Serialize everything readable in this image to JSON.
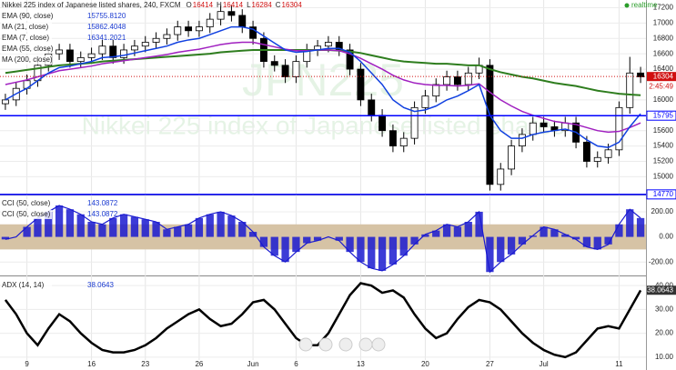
{
  "chart_data": [
    {
      "type": "candlestick",
      "title": "Nikkei 225 index of Japanese listed shares, 240, FXCM",
      "ohlc_header": [
        {
          "label": "O",
          "value": 16414
        },
        {
          "label": "H",
          "value": 16414
        },
        {
          "label": "L",
          "value": 16284
        },
        {
          "label": "C",
          "value": 16304
        }
      ],
      "realtime": "realtime",
      "watermark": [
        "JPN225",
        "Nikkei 225 index of Japanese listed shares"
      ],
      "indicators": [
        {
          "name": "EMA (90, close)",
          "value": 15755.812,
          "value_label": "15755.8120"
        },
        {
          "name": "MA (21, close)",
          "value": 15862.4048,
          "value_label": "15862.4048"
        },
        {
          "name": "EMA (7, close)",
          "value": 16341.2021,
          "value_label": "16341.2021"
        },
        {
          "name": "EMA (55, close)"
        },
        {
          "name": "MA (200, close)"
        }
      ],
      "up_color": "#ffffff",
      "down_color": "#000000",
      "open": [
        15950,
        16000,
        16150,
        16250,
        16450,
        16600,
        16650,
        16500,
        16550,
        16600,
        16700,
        16550,
        16650,
        16700,
        16750,
        16800,
        16850,
        16950,
        16900,
        16950,
        17050,
        17150,
        17100,
        16950,
        16800,
        16500,
        16450,
        16300,
        16500,
        16650,
        16700,
        16750,
        16650,
        16400,
        16000,
        15800,
        15600,
        15400,
        15500,
        15900,
        16050,
        16200,
        16300,
        16200,
        16350,
        16450,
        14900,
        15100,
        15400,
        15550,
        15700,
        15650,
        15600,
        15700,
        15450,
        15200,
        15250,
        15350,
        15900,
        16350
      ],
      "high": [
        16080,
        16230,
        16330,
        16530,
        16680,
        16730,
        16730,
        16630,
        16680,
        16780,
        16780,
        16730,
        16780,
        16830,
        16880,
        16930,
        17030,
        17030,
        17030,
        17130,
        17230,
        17230,
        17180,
        17030,
        16880,
        16580,
        16530,
        16580,
        16730,
        16780,
        16830,
        16830,
        16730,
        16480,
        16080,
        15880,
        15680,
        15580,
        15980,
        16130,
        16280,
        16380,
        16380,
        16430,
        16550,
        16530,
        15180,
        15480,
        15630,
        15780,
        15780,
        15730,
        15780,
        15780,
        15530,
        15330,
        15430,
        15980,
        16560,
        16430
      ],
      "low": [
        15870,
        15920,
        16070,
        16170,
        16370,
        16520,
        16420,
        16420,
        16470,
        16520,
        16470,
        16470,
        16570,
        16620,
        16670,
        16720,
        16770,
        16820,
        16820,
        16870,
        16970,
        17020,
        16870,
        16720,
        16420,
        16370,
        16220,
        16220,
        16420,
        16570,
        16620,
        16570,
        16320,
        15920,
        15720,
        15520,
        15320,
        15320,
        15420,
        15820,
        15970,
        16120,
        16120,
        16120,
        16270,
        14820,
        14820,
        15020,
        15320,
        15470,
        15570,
        15520,
        15520,
        15370,
        15120,
        15120,
        15170,
        15270,
        15820,
        16220
      ],
      "close": [
        16000,
        16150,
        16250,
        16450,
        16600,
        16650,
        16500,
        16550,
        16600,
        16700,
        16550,
        16650,
        16700,
        16750,
        16800,
        16850,
        16950,
        16900,
        16950,
        17050,
        17150,
        17100,
        16950,
        16800,
        16500,
        16450,
        16300,
        16500,
        16650,
        16700,
        16750,
        16650,
        16400,
        16000,
        15800,
        15600,
        15400,
        15500,
        15900,
        16050,
        16200,
        16300,
        16200,
        16350,
        16450,
        14900,
        15100,
        15400,
        15550,
        15700,
        15650,
        15600,
        15700,
        15450,
        15200,
        15250,
        15350,
        15900,
        16350,
        16300
      ],
      "overlays": [
        {
          "color": "#2e7d1e",
          "width": 2,
          "values": [
            16350,
            16370,
            16390,
            16410,
            16430,
            16450,
            16460,
            16470,
            16480,
            16500,
            16510,
            16520,
            16530,
            16540,
            16550,
            16560,
            16570,
            16580,
            16590,
            16600,
            16620,
            16630,
            16640,
            16650,
            16650,
            16650,
            16650,
            16650,
            16650,
            16650,
            16650,
            16640,
            16630,
            16610,
            16580,
            16550,
            16520,
            16500,
            16490,
            16480,
            16470,
            16470,
            16460,
            16450,
            16450,
            16400,
            16360,
            16330,
            16300,
            16280,
            16250,
            16220,
            16200,
            16180,
            16150,
            16120,
            16100,
            16080,
            16070,
            16060
          ]
        },
        {
          "color": "#a020c0",
          "width": 1.5,
          "values": [
            16200,
            16230,
            16260,
            16300,
            16340,
            16380,
            16400,
            16420,
            16440,
            16470,
            16490,
            16510,
            16530,
            16550,
            16570,
            16590,
            16620,
            16640,
            16660,
            16690,
            16720,
            16740,
            16750,
            16750,
            16720,
            16690,
            16660,
            16640,
            16640,
            16650,
            16650,
            16640,
            16600,
            16540,
            16470,
            16400,
            16320,
            16260,
            16220,
            16200,
            16190,
            16190,
            16180,
            16190,
            16210,
            16100,
            16000,
            15920,
            15850,
            15800,
            15760,
            15720,
            15700,
            15680,
            15640,
            15600,
            15580,
            15590,
            15640,
            15700
          ]
        },
        {
          "color": "#1040e0",
          "width": 1.5,
          "values": [
            16000,
            16080,
            16150,
            16250,
            16350,
            16420,
            16440,
            16470,
            16500,
            16550,
            16560,
            16580,
            16610,
            16640,
            16670,
            16700,
            16750,
            16780,
            16800,
            16850,
            16900,
            16950,
            16950,
            16920,
            16830,
            16740,
            16650,
            16620,
            16630,
            16650,
            16670,
            16670,
            16620,
            16500,
            16350,
            16200,
            16000,
            15900,
            15850,
            15870,
            15920,
            16000,
            16050,
            16120,
            16200,
            15800,
            15600,
            15500,
            15500,
            15550,
            15580,
            15600,
            15620,
            15580,
            15480,
            15400,
            15380,
            15450,
            15650,
            15820
          ]
        }
      ],
      "levels": [
        {
          "value": 15795,
          "color": "#0000ff"
        },
        {
          "value": 14770,
          "color": "#0000ff"
        }
      ],
      "last": {
        "value": 16304,
        "color": "#d01010",
        "countdown": "2:45:49"
      },
      "ylim": [
        14780,
        17300
      ],
      "yticks": [
        15000,
        15200,
        15400,
        15600,
        16000,
        16400,
        16600,
        16800,
        17000,
        17200
      ],
      "grid": true
    },
    {
      "type": "bar",
      "color": "#1a1ad0",
      "indicators": [
        {
          "name": "CCI (50, close)",
          "value": 143.0872,
          "value_label": "143.0872"
        },
        {
          "name": "CCI (50, close)",
          "value": 143.0872,
          "value_label": "143.0872"
        }
      ],
      "band": [
        -100,
        100
      ],
      "band_color": "#d6c3a5",
      "values": [
        -20,
        0,
        80,
        150,
        200,
        250,
        220,
        180,
        120,
        100,
        150,
        180,
        160,
        140,
        120,
        60,
        80,
        100,
        150,
        180,
        200,
        170,
        120,
        40,
        -80,
        -150,
        -200,
        -120,
        -50,
        -30,
        0,
        -30,
        -120,
        -200,
        -250,
        -270,
        -220,
        -150,
        -60,
        20,
        50,
        100,
        80,
        120,
        200,
        -280,
        -200,
        -140,
        -60,
        10,
        80,
        60,
        20,
        -20,
        -80,
        -100,
        -60,
        100,
        220,
        150
      ],
      "ylim": [
        -300,
        330
      ],
      "yticks": [
        {
          "value": 200,
          "label": "200.00"
        },
        {
          "value": 0,
          "label": "0.00"
        },
        {
          "value": -200,
          "label": "-200.00"
        }
      ],
      "grid": true
    },
    {
      "type": "line",
      "color": "#000000",
      "indicators": [
        {
          "name": "ADX (14, 14)",
          "value": 38.0643,
          "value_label": "38.0643"
        }
      ],
      "categories": [
        null,
        null,
        "9",
        null,
        null,
        null,
        null,
        null,
        "16",
        null,
        null,
        null,
        null,
        "23",
        null,
        null,
        null,
        null,
        "26",
        null,
        null,
        null,
        null,
        "Jun",
        null,
        null,
        null,
        "6",
        null,
        null,
        null,
        null,
        null,
        "13",
        null,
        null,
        null,
        null,
        null,
        "20",
        null,
        null,
        null,
        null,
        null,
        "27",
        null,
        null,
        null,
        null,
        "Jul",
        null,
        null,
        null,
        null,
        null,
        null,
        "11",
        null,
        null
      ],
      "values": [
        34,
        28,
        20,
        15,
        22,
        28,
        25,
        20,
        16,
        13,
        12,
        12,
        13,
        15,
        18,
        22,
        25,
        28,
        30,
        26,
        23,
        24,
        28,
        33,
        34,
        30,
        24,
        18,
        15,
        15,
        20,
        28,
        36,
        41,
        40,
        37,
        38,
        35,
        28,
        22,
        18,
        20,
        26,
        31,
        34,
        33,
        30,
        25,
        20,
        16,
        13,
        11,
        10,
        12,
        17,
        22,
        23,
        22,
        30,
        38
      ],
      "ylim": [
        4.6,
        43.5
      ],
      "yticks": [
        {
          "value": 40,
          "label": "40.00"
        },
        {
          "value": 30,
          "label": "30.00"
        },
        {
          "value": 20,
          "label": "20.00"
        },
        {
          "value": 10,
          "label": "10.00"
        }
      ],
      "grid": true
    }
  ]
}
